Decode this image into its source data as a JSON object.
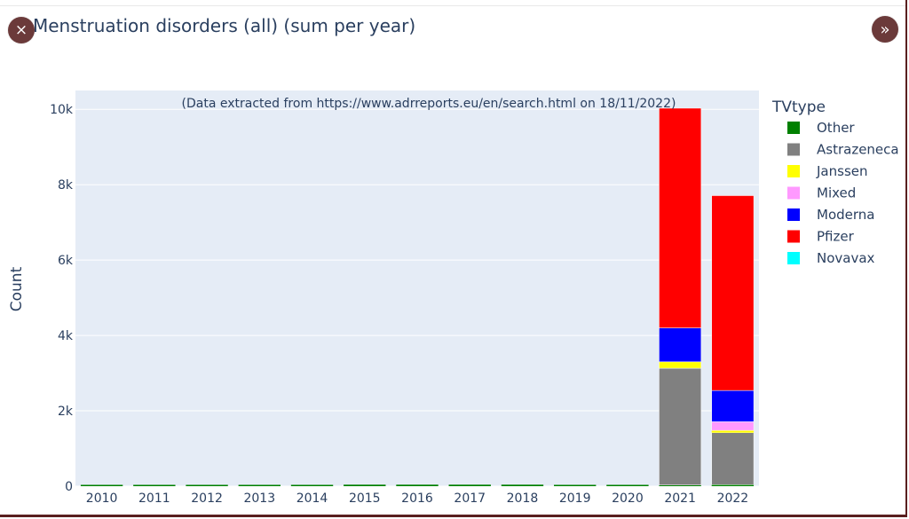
{
  "title": "Menstruation disorders (all) (sum per year)",
  "controls": {
    "close_icon": "close-icon",
    "expand_icon": "double-chevron-right-icon",
    "close_glyph": "×",
    "expand_glyph": "»"
  },
  "chart_data": {
    "type": "bar",
    "stacked": true,
    "title": "Menstruation disorders (all) (sum per year)",
    "annotation": "(Data extracted from https://www.adrreports.eu/en/search.html on 18/11/2022)",
    "xlabel": "",
    "ylabel": "Count",
    "ylim": [
      0,
      10500
    ],
    "yticks": [
      0,
      2000,
      4000,
      6000,
      8000,
      10000
    ],
    "ytick_labels": [
      "0",
      "2k",
      "4k",
      "6k",
      "8k",
      "10k"
    ],
    "categories": [
      "2010",
      "2011",
      "2012",
      "2013",
      "2014",
      "2015",
      "2016",
      "2017",
      "2018",
      "2019",
      "2020",
      "2021",
      "2022"
    ],
    "legend_title": "TVtype",
    "legend_position": "right",
    "grid": true,
    "series": [
      {
        "name": "Other",
        "color": "#008000",
        "values": [
          10,
          10,
          10,
          10,
          20,
          40,
          40,
          40,
          40,
          30,
          20,
          30,
          40
        ]
      },
      {
        "name": "Astrazeneca",
        "color": "#808080",
        "values": [
          0,
          0,
          0,
          0,
          0,
          0,
          0,
          0,
          0,
          0,
          0,
          3100,
          1380
        ]
      },
      {
        "name": "Janssen",
        "color": "#ffff00",
        "values": [
          0,
          0,
          0,
          0,
          0,
          0,
          0,
          0,
          0,
          0,
          0,
          170,
          60
        ]
      },
      {
        "name": "Mixed",
        "color": "#ff99ff",
        "values": [
          0,
          0,
          0,
          0,
          0,
          0,
          0,
          0,
          0,
          0,
          0,
          0,
          230
        ]
      },
      {
        "name": "Moderna",
        "color": "#0000ff",
        "values": [
          0,
          0,
          0,
          0,
          0,
          0,
          0,
          0,
          0,
          0,
          0,
          900,
          830
        ]
      },
      {
        "name": "Pfizer",
        "color": "#ff0000",
        "values": [
          0,
          0,
          0,
          0,
          0,
          0,
          0,
          0,
          0,
          0,
          0,
          5830,
          5170
        ]
      },
      {
        "name": "Novavax",
        "color": "#00ffff",
        "values": [
          0,
          0,
          0,
          0,
          0,
          0,
          0,
          0,
          0,
          0,
          0,
          0,
          0
        ]
      }
    ],
    "plot_background": "#e5ecf6"
  }
}
